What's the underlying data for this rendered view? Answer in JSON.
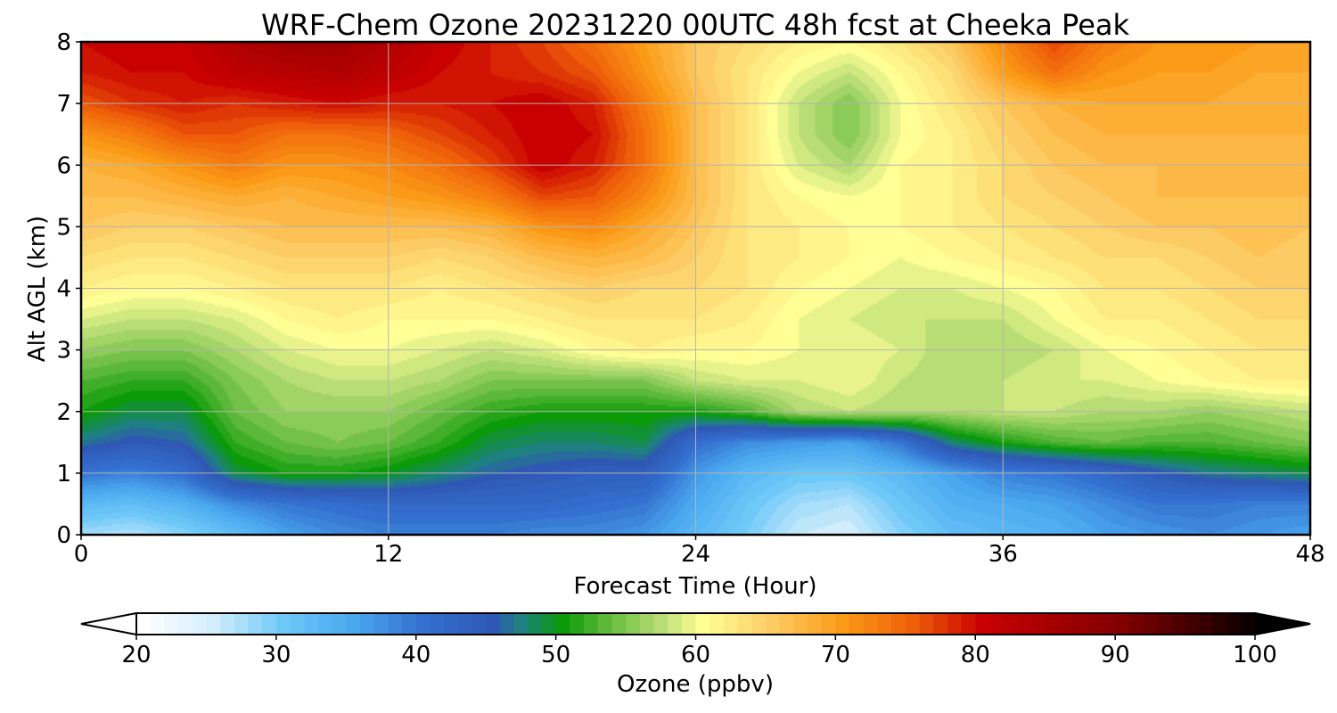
{
  "chart_data": {
    "type": "heatmap",
    "title": "WRF-Chem Ozone  20231220 00UTC 48h fcst at Cheeka Peak",
    "xlabel": "Forecast Time (Hour)",
    "ylabel": "Alt AGL (km)",
    "xlim": [
      0,
      48
    ],
    "ylim": [
      0,
      8
    ],
    "x_ticks": [
      0,
      12,
      24,
      36,
      48
    ],
    "y_ticks": [
      0,
      1,
      2,
      3,
      4,
      5,
      6,
      7,
      8
    ],
    "grid": true,
    "x_hours": [
      0,
      2,
      4,
      6,
      8,
      10,
      12,
      14,
      16,
      18,
      20,
      22,
      24,
      26,
      28,
      30,
      32,
      34,
      36,
      38,
      40,
      42,
      44,
      46,
      48
    ],
    "alt_km": [
      0,
      0.5,
      1,
      1.5,
      2,
      2.5,
      3,
      3.5,
      4,
      4.5,
      5,
      5.5,
      6,
      6.5,
      7,
      7.5,
      8
    ],
    "ozone_ppbv": [
      [
        28,
        27,
        29,
        32,
        36,
        38,
        39,
        39,
        39,
        38,
        38,
        37,
        33,
        30,
        26,
        25,
        29,
        32,
        33,
        34,
        36,
        37,
        38,
        37,
        36
      ],
      [
        33,
        32,
        34,
        38,
        40,
        41,
        42,
        42,
        42,
        42,
        41,
        40,
        35,
        31,
        28,
        27,
        31,
        34,
        35,
        36,
        38,
        40,
        40,
        39,
        39
      ],
      [
        40,
        39,
        41,
        49,
        51,
        51,
        50,
        48,
        46,
        45,
        44,
        44,
        37,
        33,
        31,
        31,
        33,
        36,
        39,
        40,
        42,
        45,
        47,
        48,
        49
      ],
      [
        47,
        45,
        46,
        52,
        54,
        55,
        54,
        52,
        49,
        48,
        48,
        49,
        41,
        38,
        37,
        36,
        40,
        48,
        51,
        53,
        54,
        53,
        53,
        54,
        55
      ],
      [
        51,
        49,
        49,
        54,
        56,
        56,
        56,
        54,
        52,
        51,
        51,
        51,
        51,
        53,
        57,
        58,
        57,
        57,
        58,
        58,
        57,
        57,
        56,
        57,
        58
      ],
      [
        53,
        52,
        52,
        55,
        57,
        58,
        58,
        57,
        55,
        55,
        55,
        55,
        58,
        59,
        59,
        60,
        58,
        57,
        58,
        59,
        59,
        60,
        61,
        62,
        62
      ],
      [
        56,
        55,
        55,
        57,
        59,
        60,
        60,
        59,
        58,
        59,
        61,
        62,
        61,
        61,
        60,
        60,
        59,
        57,
        57,
        58,
        60,
        61,
        62,
        63,
        63
      ],
      [
        59,
        58,
        58,
        59,
        61,
        62,
        61,
        61,
        61,
        62,
        63,
        63,
        63,
        62,
        60,
        59,
        58,
        58,
        58,
        60,
        62,
        62,
        63,
        64,
        64
      ],
      [
        62,
        61,
        61,
        62,
        63,
        63,
        63,
        62,
        63,
        64,
        65,
        64,
        64,
        63,
        61,
        60,
        59,
        59,
        60,
        61,
        63,
        63,
        64,
        65,
        65
      ],
      [
        64,
        63,
        63,
        64,
        65,
        65,
        65,
        64,
        65,
        67,
        68,
        67,
        65,
        63,
        62,
        61,
        60,
        61,
        62,
        63,
        64,
        64,
        65,
        66,
        65
      ],
      [
        66,
        65,
        65,
        66,
        67,
        67,
        67,
        67,
        68,
        71,
        72,
        69,
        66,
        63,
        62,
        61,
        61,
        62,
        63,
        64,
        65,
        66,
        66,
        67,
        66
      ],
      [
        67,
        67,
        68,
        69,
        68,
        69,
        70,
        71,
        73,
        77,
        76,
        72,
        67,
        63,
        61,
        60,
        61,
        62,
        64,
        65,
        66,
        67,
        67,
        67,
        67
      ],
      [
        68,
        69,
        71,
        73,
        71,
        71,
        72,
        74,
        77,
        81,
        79,
        74,
        67,
        63,
        59,
        57,
        61,
        62,
        64,
        66,
        67,
        67,
        67,
        67,
        67
      ],
      [
        71,
        73,
        76,
        76,
        74,
        74,
        75,
        77,
        79,
        81,
        80,
        74,
        67,
        63,
        58,
        55,
        60,
        62,
        65,
        67,
        68,
        68,
        68,
        68,
        68
      ],
      [
        76,
        78,
        79,
        78,
        79,
        80,
        79,
        79,
        80,
        81,
        79,
        73,
        67,
        63,
        58,
        55,
        60,
        63,
        66,
        68,
        69,
        69,
        69,
        68,
        68
      ],
      [
        79,
        80,
        80,
        82,
        83,
        84,
        82,
        80,
        79,
        78,
        76,
        71,
        66,
        63,
        60,
        58,
        61,
        64,
        70,
        74,
        71,
        70,
        70,
        69,
        69
      ],
      [
        80,
        81,
        81,
        84,
        86,
        86,
        84,
        81,
        79,
        77,
        74,
        70,
        66,
        64,
        62,
        61,
        63,
        66,
        72,
        77,
        73,
        71,
        71,
        70,
        70
      ]
    ],
    "colorbar": {
      "label": "Ozone  (ppbv)",
      "min": 20,
      "max": 100,
      "ticks": [
        20,
        30,
        40,
        50,
        60,
        70,
        80,
        90,
        100
      ],
      "extend": "both",
      "color_stops": [
        {
          "v": 20,
          "c": "#ffffff"
        },
        {
          "v": 25,
          "c": "#d2eefc"
        },
        {
          "v": 30,
          "c": "#6ec8f8"
        },
        {
          "v": 35,
          "c": "#4aa8ef"
        },
        {
          "v": 40,
          "c": "#3470cf"
        },
        {
          "v": 45,
          "c": "#2f58b4"
        },
        {
          "v": 47,
          "c": "#1e8080"
        },
        {
          "v": 50,
          "c": "#0a9a0a"
        },
        {
          "v": 53,
          "c": "#5cb83a"
        },
        {
          "v": 57,
          "c": "#b9dd75"
        },
        {
          "v": 60,
          "c": "#ffff96"
        },
        {
          "v": 65,
          "c": "#fdcb64"
        },
        {
          "v": 70,
          "c": "#fb9a16"
        },
        {
          "v": 75,
          "c": "#ef5f0a"
        },
        {
          "v": 80,
          "c": "#c80000"
        },
        {
          "v": 90,
          "c": "#820000"
        },
        {
          "v": 100,
          "c": "#000000"
        }
      ]
    }
  }
}
